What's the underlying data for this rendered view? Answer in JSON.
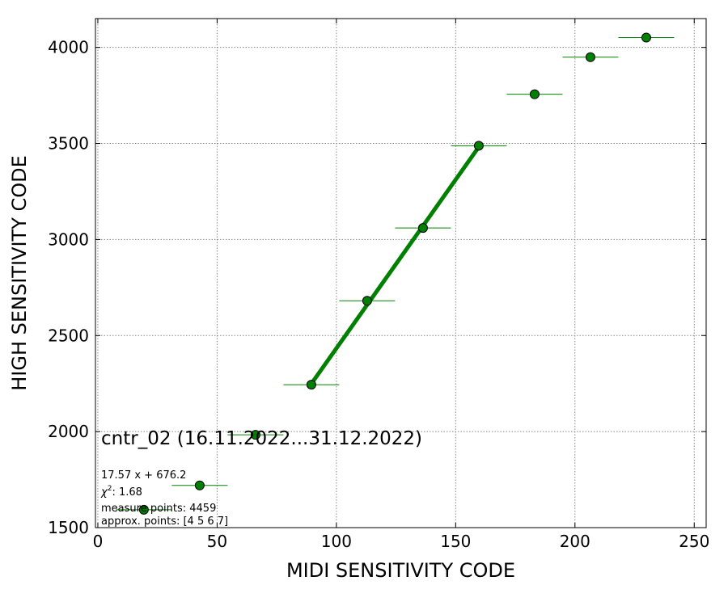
{
  "chart_data": {
    "type": "scatter",
    "title": "cntr_02 (16.11.2022...31.12.2022)",
    "xlabel": "MIDI SENSITIVITY CODE",
    "ylabel": "HIGH SENSITIVITY CODE",
    "xlim": [
      -1,
      255
    ],
    "ylim": [
      1500,
      4150
    ],
    "xticks": [
      0,
      50,
      100,
      150,
      200,
      250
    ],
    "yticks": [
      1500,
      2000,
      2500,
      3000,
      3500,
      4000
    ],
    "grid": true,
    "colors": {
      "marker_fill": "#008000",
      "marker_edge": "#000000",
      "errorbar": "#008000",
      "fit_line": "#008000",
      "grid": "#888888"
    },
    "points": [
      {
        "x": 19.3,
        "y": 1593,
        "xerr": 11.7
      },
      {
        "x": 42.7,
        "y": 1720,
        "xerr": 11.7
      },
      {
        "x": 66.1,
        "y": 1983,
        "xerr": 11.7
      },
      {
        "x": 89.5,
        "y": 2244,
        "xerr": 11.7
      },
      {
        "x": 112.9,
        "y": 2681,
        "xerr": 11.7
      },
      {
        "x": 136.3,
        "y": 3060,
        "xerr": 11.7
      },
      {
        "x": 159.7,
        "y": 3488,
        "xerr": 11.7
      },
      {
        "x": 183.1,
        "y": 3756,
        "xerr": 11.7
      },
      {
        "x": 206.5,
        "y": 3949,
        "xerr": 11.7
      },
      {
        "x": 229.9,
        "y": 4051,
        "xerr": 11.7
      }
    ],
    "fit_line": {
      "x": [
        89.5,
        159.7
      ],
      "y": [
        2249,
        3482
      ]
    },
    "annotations": {
      "fit_equation": "17.57 x + 676.2",
      "chi2_symbol": "χ",
      "chi2_exp": "2",
      "chi2_value": ": 1.68",
      "measure_points": "measure points: 4459",
      "approx_points": "approx. points: [4 5 6 7]"
    }
  }
}
